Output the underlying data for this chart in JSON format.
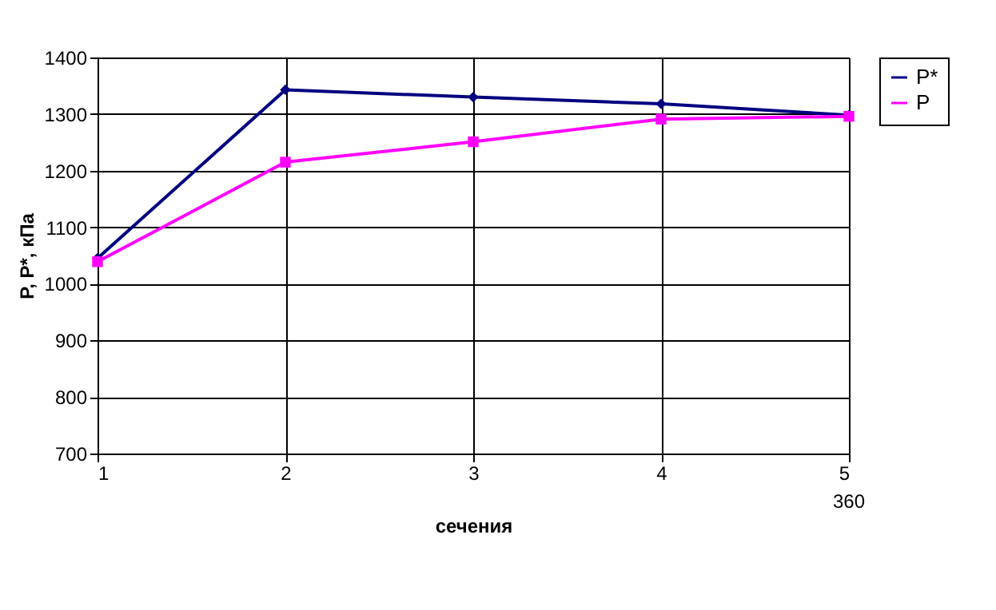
{
  "chart_data": {
    "type": "line",
    "xlabel": "сечения",
    "ylabel": "P, P*, кПа",
    "categories": [
      "1",
      "2",
      "3",
      "4",
      "5"
    ],
    "series": [
      {
        "name": "P*",
        "color": "#000080",
        "marker": "diamond",
        "values": [
          1045,
          1343,
          1330,
          1318,
          1298
        ]
      },
      {
        "name": "P",
        "color": "#ff00ff",
        "marker": "square",
        "values": [
          1039,
          1215,
          1251,
          1291,
          1296
        ]
      }
    ],
    "ylim": [
      700,
      1400
    ],
    "yticks": [
      700,
      800,
      900,
      1000,
      1100,
      1200,
      1300,
      1400
    ],
    "grid": true,
    "legend": "right",
    "line_style": "solid",
    "annotations": [
      "360"
    ]
  }
}
